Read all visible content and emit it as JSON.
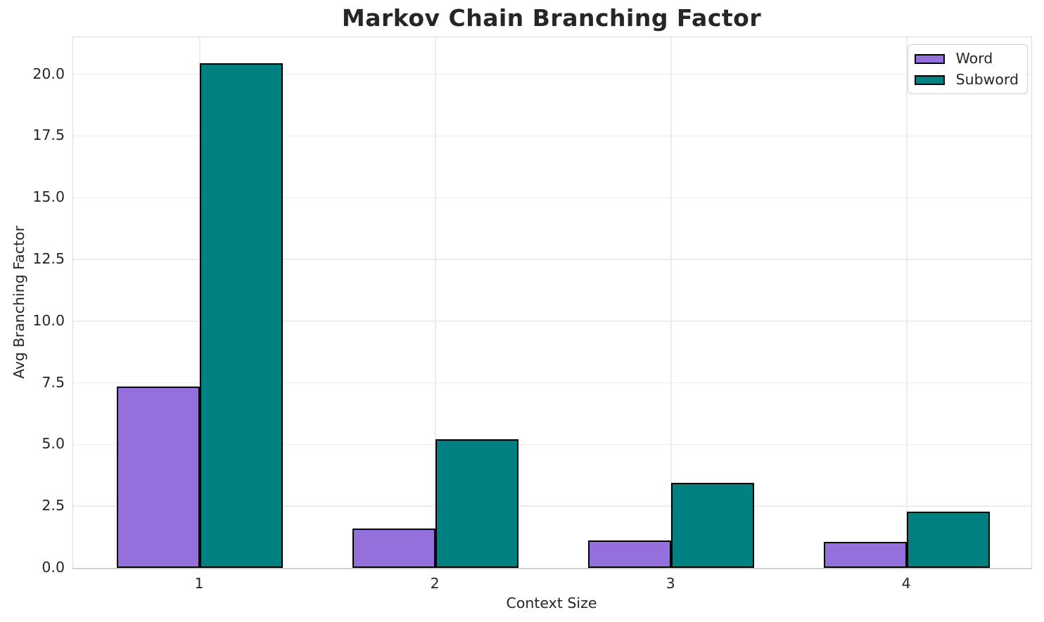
{
  "figure": {
    "background": "#ffffff"
  },
  "chart_data": {
    "type": "bar",
    "title": "Markov Chain Branching Factor",
    "xlabel": "Context Size",
    "ylabel": "Avg Branching Factor",
    "categories": [
      "1",
      "2",
      "3",
      "4"
    ],
    "series": [
      {
        "name": "Word",
        "color": "#9370DB",
        "values": [
          7.35,
          1.6,
          1.1,
          1.05
        ]
      },
      {
        "name": "Subword",
        "color": "#008080",
        "values": [
          20.45,
          5.2,
          3.45,
          2.27
        ]
      }
    ],
    "bar_edge_color": "#000000",
    "ylim": [
      0,
      21.5
    ],
    "yticks": [
      0,
      2.5,
      5,
      7.5,
      10,
      12.5,
      15,
      17.5,
      20
    ],
    "ytick_labels": [
      "0.0",
      "2.5",
      "5.0",
      "7.5",
      "10.0",
      "12.5",
      "15.0",
      "17.5",
      "20.0"
    ],
    "grid": true,
    "grid_color": "#ececec",
    "spine_color": "#dcdcdc",
    "text_color": "#262626",
    "legend": {
      "position": "upper right",
      "entries": [
        "Word",
        "Subword"
      ]
    }
  }
}
